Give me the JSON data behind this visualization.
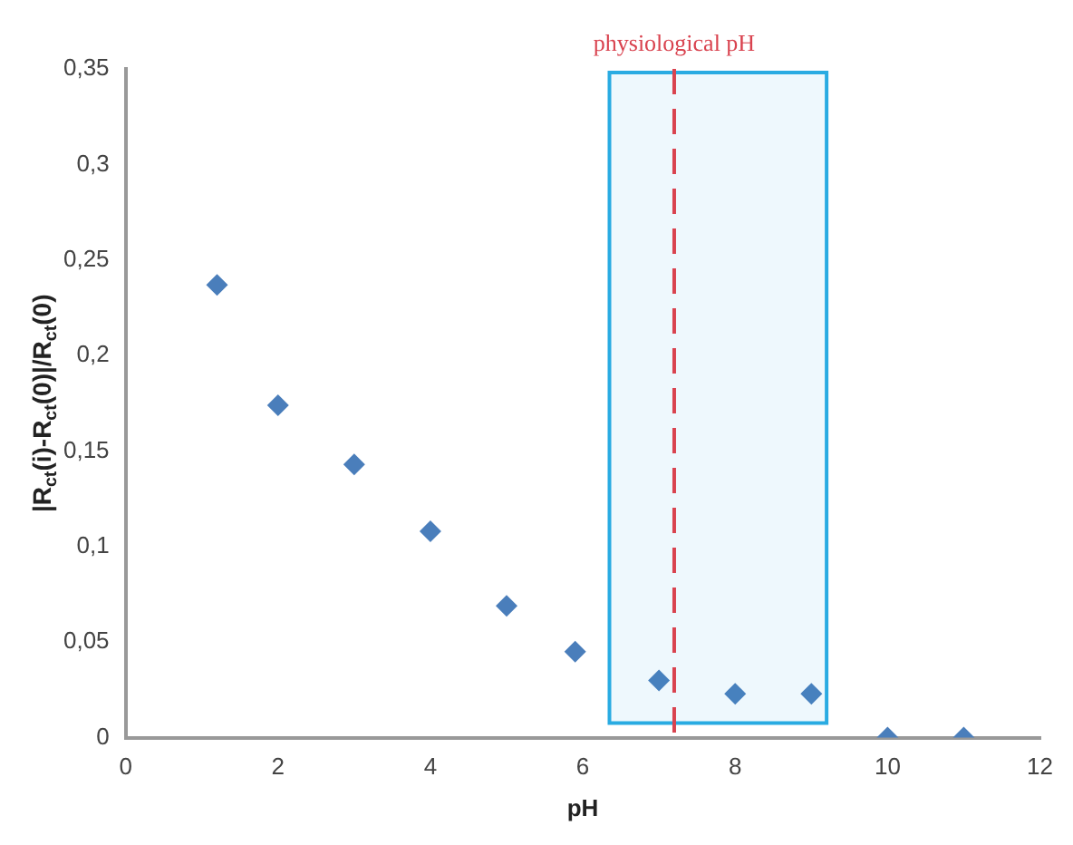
{
  "chart_data": {
    "type": "scatter",
    "xlabel": "pH",
    "ylabel": "|R$_{ct}$(i)-R$_{ct}$(0)|/R$_{ct}$(0)",
    "marker": "diamond",
    "grid": false,
    "legend": false,
    "x": [
      1.2,
      2,
      3,
      4,
      5,
      5.9,
      7,
      8,
      9,
      10,
      11
    ],
    "series": [
      {
        "color": "#4a7ebb",
        "values": [
          0.237,
          0.174,
          0.143,
          0.108,
          0.069,
          0.045,
          0.03,
          0.023,
          0.023,
          0,
          0
        ]
      }
    ],
    "xlim": [
      0,
      12
    ],
    "xticks": [
      0,
      2,
      4,
      6,
      8,
      10,
      12
    ],
    "ylim": [
      0,
      0.35
    ],
    "yticks": [
      0,
      {
        "value": 0.05,
        "label": "0,05"
      },
      {
        "value": 0.1,
        "label": "0,1"
      },
      {
        "value": 0.15,
        "label": "0,15"
      },
      {
        "value": 0.2,
        "label": "0,2"
      },
      {
        "value": 0.25,
        "label": "0,25"
      },
      {
        "value": 0.3,
        "label": "0,3"
      },
      {
        "value": 0.35,
        "label": "0,35"
      }
    ],
    "ref_lines": [
      {
        "axis": "x",
        "value": 7.2,
        "label": "physiological pH",
        "color": "#d9434f",
        "line_style": "dashed"
      }
    ],
    "bands": [
      {
        "axis": "x",
        "from": 6.35,
        "to": 9.2,
        "color": "#29abe2"
      }
    ]
  }
}
